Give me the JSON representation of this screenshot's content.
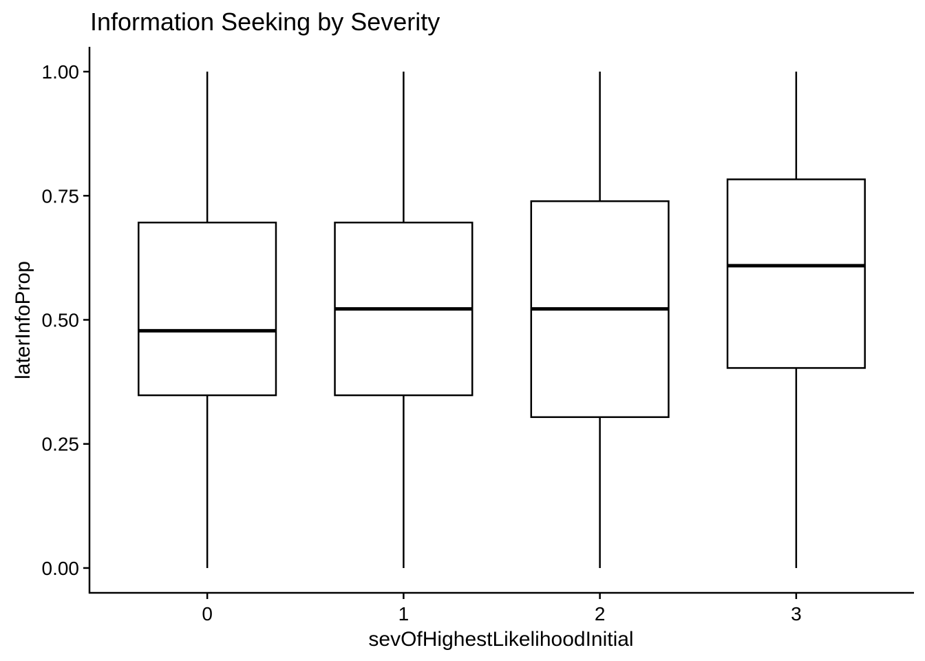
{
  "chart_data": {
    "type": "boxplot",
    "title": "Information Seeking by Severity",
    "xlabel": "sevOfHighestLikelihoodInitial",
    "ylabel": "laterInfoProp",
    "categories": [
      "0",
      "1",
      "2",
      "3"
    ],
    "ylim": [
      -0.05,
      1.05
    ],
    "y_ticks": [
      0.0,
      0.25,
      0.5,
      0.75,
      1.0
    ],
    "y_tick_labels": [
      "0.00",
      "0.25",
      "0.50",
      "0.75",
      "1.00"
    ],
    "boxes": [
      {
        "category": "0",
        "min": 0.0,
        "q1": 0.348,
        "median": 0.478,
        "q3": 0.696,
        "max": 1.0
      },
      {
        "category": "1",
        "min": 0.0,
        "q1": 0.348,
        "median": 0.522,
        "q3": 0.696,
        "max": 1.0
      },
      {
        "category": "2",
        "min": 0.0,
        "q1": 0.304,
        "median": 0.522,
        "q3": 0.739,
        "max": 1.0
      },
      {
        "category": "3",
        "min": 0.0,
        "q1": 0.403,
        "median": 0.609,
        "q3": 0.783,
        "max": 1.0
      }
    ],
    "grid": false,
    "legend": "none",
    "colors": {
      "box_fill": "#ffffff",
      "box_stroke": "#000000",
      "axis": "#000000"
    }
  }
}
